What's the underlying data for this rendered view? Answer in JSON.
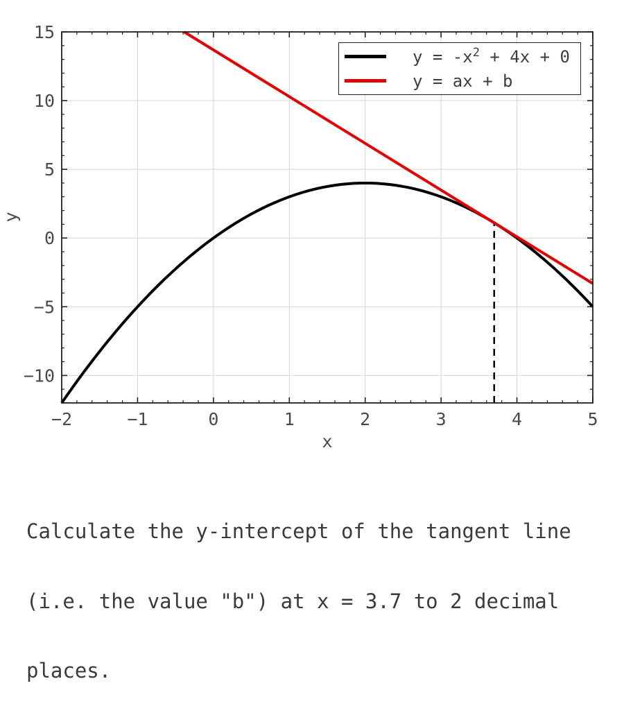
{
  "chart_data": {
    "type": "line",
    "title": "",
    "xlabel": "x",
    "ylabel": "y",
    "xlim": [
      -2,
      5
    ],
    "ylim": [
      -12,
      15
    ],
    "xticks": [
      -2,
      -1,
      0,
      1,
      2,
      3,
      4,
      5
    ],
    "yticks": [
      15,
      10,
      5,
      0,
      -5,
      -10
    ],
    "x_minor_step": 0.2,
    "y_minor_step": 1,
    "grid": true,
    "legend_position": "upper right",
    "colors": {
      "grid": "#d9d9d9",
      "frame": "#1f1f1f",
      "tick_labels": "#4a4a4a",
      "question_text": "#3a3a3a"
    },
    "series": [
      {
        "name": "parabola",
        "label_parts": {
          "pre": "y = -x",
          "sup": "2",
          "post": " + 4x + 0"
        },
        "fn": "quadratic",
        "coefficients": [
          -1,
          4,
          0
        ],
        "color": "#000000",
        "width": 4
      },
      {
        "name": "tangent",
        "label": "y = ax + b",
        "fn": "linear",
        "slope": -3.4,
        "intercept": 13.69,
        "color": "#e60000",
        "width": 4
      }
    ],
    "tangent_point": {
      "x": 3.7,
      "y": 1.11
    },
    "marker_line": {
      "x": 3.7,
      "style": "dashed",
      "color": "#000000"
    }
  },
  "question": {
    "lines": [
      "Calculate the y-intercept of the tangent line",
      "(i.e. the value \"b\") at x = 3.7 to 2 decimal",
      "places."
    ]
  }
}
